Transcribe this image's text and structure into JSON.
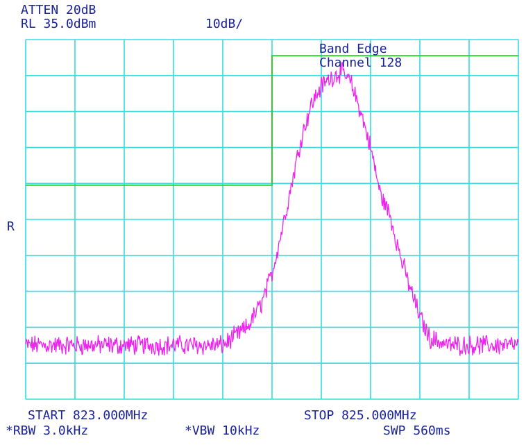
{
  "header": {
    "atten": "ATTEN 20dB",
    "ref_level": "RL 35.0dBm",
    "scale": "10dB/"
  },
  "ref_marker": "R",
  "footer": {
    "start": "START 823.000MHz",
    "stop": "STOP 825.000MHz",
    "rbw": "*RBW 3.0kHz",
    "vbw": "*VBW 10kHz",
    "sweep": "SWP 560ms"
  },
  "colors": {
    "grid": "#33dddd",
    "text": "#1a2299",
    "trace": "#ee22ee",
    "limit": "#33cc33"
  },
  "chart_data": {
    "type": "line",
    "x_unit": "MHz",
    "y_unit": "dBm",
    "xlim": [
      823.0,
      825.0
    ],
    "ylim": [
      -65,
      35
    ],
    "grid": true,
    "grid_divisions": {
      "x": 10,
      "y": 10
    },
    "annotation": [
      "Band Edge",
      "Channel 128"
    ],
    "limit_line": {
      "x": [
        823.0,
        824.0,
        824.0,
        825.0
      ],
      "y": [
        -5.5,
        -5.5,
        30.5,
        30.5
      ]
    },
    "series": [
      {
        "x": [
          823.0,
          823.4,
          823.8,
          823.9,
          823.96,
          824.0,
          824.04,
          824.08,
          824.12,
          824.16,
          824.2,
          824.24,
          824.28,
          824.32,
          824.36,
          824.4,
          824.44,
          824.48,
          824.52,
          824.56,
          824.6,
          824.64,
          824.68,
          824.72,
          824.8,
          825.0
        ],
        "y": [
          -50,
          -50,
          -50,
          -45,
          -38,
          -30,
          -18,
          -5,
          8,
          17,
          22,
          24.5,
          26,
          23,
          15,
          5,
          -8,
          -14,
          -25,
          -34,
          -42,
          -48,
          -49,
          -50,
          -50,
          -50
        ]
      }
    ]
  }
}
